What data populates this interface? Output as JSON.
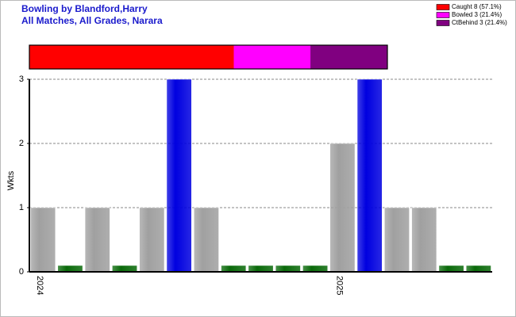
{
  "chart_data": [
    {
      "type": "proportion",
      "title": "Bowling by Blandford,Harry",
      "subtitle": "All Matches, All Grades, Narara",
      "xlim": [
        0,
        100
      ],
      "series": [
        {
          "name": "Caught 8 (57.1%)",
          "color": "#ff0000",
          "values": [
            57.1
          ]
        },
        {
          "name": "Bowled 3 (21.4%)",
          "color": "#ff00ff",
          "values": [
            21.4
          ]
        },
        {
          "name": "CtBehind 3 (21.4%)",
          "color": "#800080",
          "values": [
            21.4
          ]
        }
      ]
    },
    {
      "type": "bar",
      "y_label": "Wkts",
      "categories": [
        "2024",
        null,
        null,
        null,
        null,
        null,
        null,
        null,
        null,
        null,
        null,
        "2025",
        null,
        null,
        null,
        null,
        null
      ],
      "values": [
        1,
        0,
        1,
        0,
        1,
        3,
        1,
        0,
        0,
        0,
        0,
        2,
        3,
        1,
        1,
        0,
        0
      ],
      "colors": [
        "#a0a0a0",
        "#0a6a0a",
        "#a0a0a0",
        "#0a6a0a",
        "#a0a0a0",
        "#0000e0",
        "#a0a0a0",
        "#0a6a0a",
        "#0a6a0a",
        "#0a6a0a",
        "#0a6a0a",
        "#a0a0a0",
        "#0000e0",
        "#a0a0a0",
        "#a0a0a0",
        "#0a6a0a",
        "#0a6a0a"
      ],
      "ylim": [
        0,
        3
      ],
      "yticks": [
        0,
        1,
        2,
        3
      ],
      "grid": true
    }
  ]
}
